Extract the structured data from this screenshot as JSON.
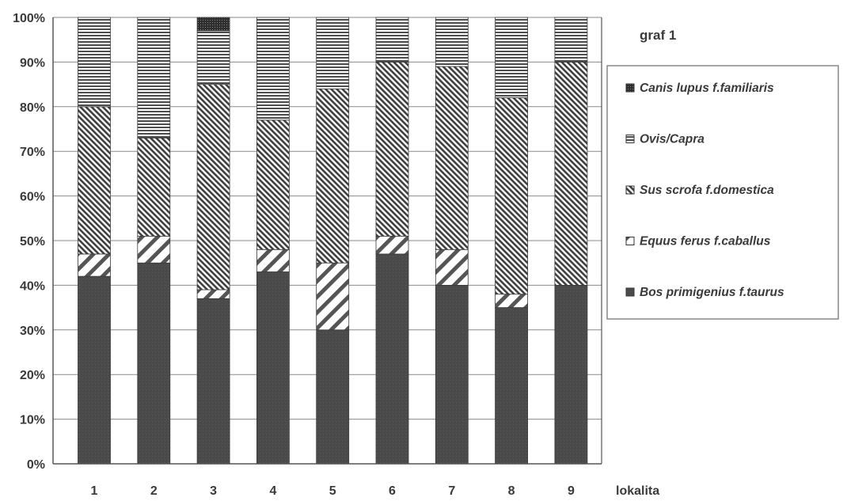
{
  "chart_data": {
    "type": "bar",
    "stacked": true,
    "percent": true,
    "title": "graf 1",
    "xlabel": "lokalita",
    "ylabel": "",
    "ylim": [
      0,
      100
    ],
    "y_ticks": [
      "0%",
      "10%",
      "20%",
      "30%",
      "40%",
      "50%",
      "60%",
      "70%",
      "80%",
      "90%",
      "100%"
    ],
    "grid": true,
    "legend_position": "right",
    "categories": [
      "1",
      "2",
      "3",
      "4",
      "5",
      "6",
      "7",
      "8",
      "9"
    ],
    "series": [
      {
        "name": "Bos primigenius f.taurus",
        "pattern": "solid-dark",
        "color": "#4a4a4a",
        "values": [
          42,
          45,
          37,
          43,
          30,
          47,
          40,
          35,
          40
        ]
      },
      {
        "name": "Equus ferus f.caballus",
        "pattern": "wide-diagonal",
        "color": "#ffffff",
        "values": [
          5,
          6,
          2,
          5,
          15,
          4,
          8,
          3,
          0
        ]
      },
      {
        "name": "Sus scrofa f.domestica",
        "pattern": "dense-diagonal",
        "color": "#6a6a6a",
        "values": [
          33,
          22,
          46,
          29,
          39,
          39,
          41,
          44,
          50
        ]
      },
      {
        "name": "Ovis/Capra",
        "pattern": "horizontal-lines",
        "color": "#7a7a7a",
        "values": [
          20,
          27,
          12,
          23,
          16,
          10,
          11,
          18,
          10
        ]
      },
      {
        "name": "Canis lupus f.familiaris",
        "pattern": "dark-dots",
        "color": "#333333",
        "values": [
          0,
          0,
          3,
          0,
          0,
          0,
          0,
          0,
          0
        ]
      }
    ],
    "legend_order": [
      "Canis lupus f.familiaris",
      "Ovis/Capra",
      "Sus scrofa f.domestica",
      "Equus ferus f.caballus",
      "Bos primigenius f.taurus"
    ]
  }
}
